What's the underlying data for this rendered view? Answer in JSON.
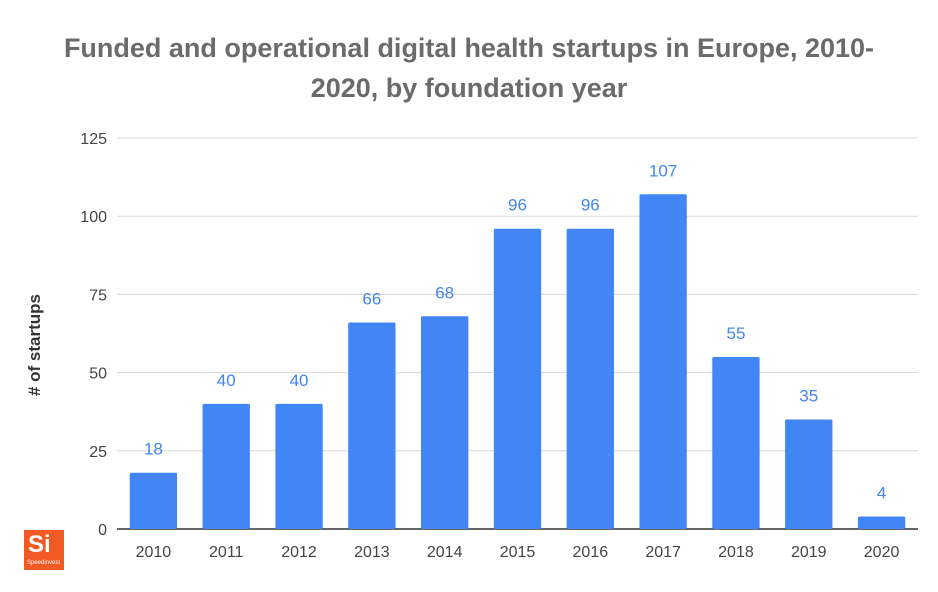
{
  "chart_data": {
    "type": "bar",
    "title": "Funded and operational digital health startups in Europe, 2010-2020, by foundation year",
    "title_lines": [
      "Funded and operational digital health startups in Europe, 2010-",
      "2020, by foundation year"
    ],
    "xlabel": "",
    "ylabel": "# of startups",
    "ylim": [
      0,
      125
    ],
    "yticks": [
      0,
      25,
      50,
      75,
      100,
      125
    ],
    "grid": true,
    "categories": [
      "2010",
      "2011",
      "2012",
      "2013",
      "2014",
      "2015",
      "2016",
      "2017",
      "2018",
      "2019",
      "2020"
    ],
    "values": [
      18,
      40,
      40,
      66,
      68,
      96,
      96,
      107,
      55,
      35,
      4
    ],
    "data_labels": [
      "18",
      "40",
      "40",
      "66",
      "68",
      "96",
      "96",
      "107",
      "55",
      "35",
      "4"
    ],
    "colors": {
      "bar": "#4285f4",
      "label": "#4285f4",
      "grid": "#d9d9d9",
      "axis": "#333333",
      "title": "#6b6b6b",
      "tick": "#444444"
    }
  },
  "logo": {
    "mark": "Si",
    "name": "Speedinvest",
    "color": "#f15a22"
  }
}
